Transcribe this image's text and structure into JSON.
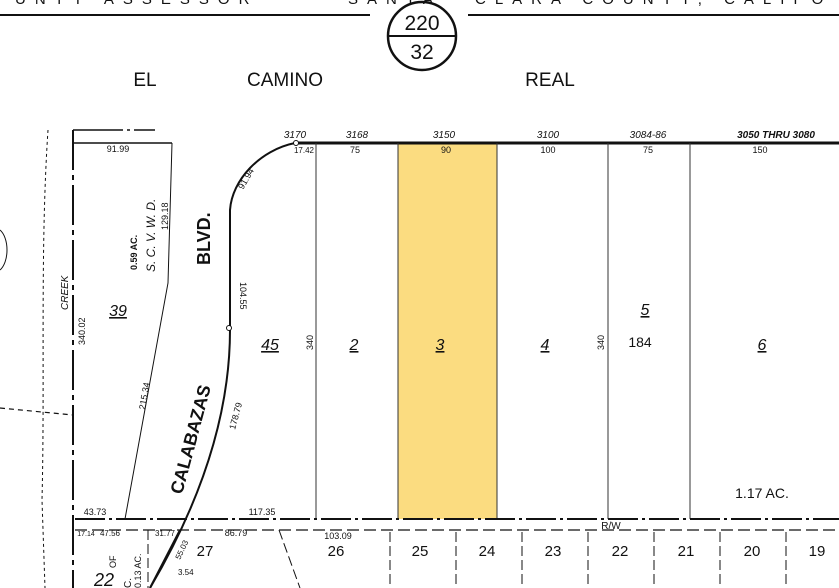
{
  "header": {
    "banner_left": "UNTY  ASSESSOR",
    "banner_mid": "SANTA",
    "banner_right": "CLARA  COUNTY,  CALIFO",
    "book": "220",
    "page": "32"
  },
  "streets": {
    "el": "EL",
    "camino": "CAMINO",
    "real": "REAL",
    "blvd": "BLVD.",
    "calabazas": "CALABAZAS",
    "creek": "CREEK",
    "right_of_way": "R/W"
  },
  "highlight_color": "#fbdc80",
  "addresses": [
    "3170",
    "3168",
    "3150",
    "3100",
    "3084-86",
    "3050 THRU 3080"
  ],
  "frontages": [
    "17.42",
    "75",
    "90",
    "100",
    "75",
    "150"
  ],
  "parcels": [
    {
      "number": "39",
      "area": "0.59 AC.",
      "owner": "S. C. V. W. D."
    },
    {
      "number": "45"
    },
    {
      "number": "2"
    },
    {
      "number": "3",
      "highlighted": true
    },
    {
      "number": "4"
    },
    {
      "number": "5",
      "sub": "184"
    },
    {
      "number": "6",
      "area": "1.17 AC."
    }
  ],
  "dimensions": {
    "d1": "91.99",
    "d2": "129.18",
    "d3": "340.02",
    "d4": "215.34",
    "d5": "91.94",
    "d6": "104.55",
    "d7": "178.79",
    "d8": "340",
    "d9": "340",
    "d10": "43.73",
    "d11": "117.35",
    "d12": "17.14",
    "d13": "47.56",
    "d14": "31.77",
    "d15": "86.79",
    "d16": "103.09",
    "d17": "55.03",
    "d18": "3.54"
  },
  "lower_lots": [
    "27",
    "26",
    "25",
    "24",
    "23",
    "22",
    "21",
    "20",
    "19"
  ],
  "lower_left": {
    "lot": "22",
    "of": "OF",
    "area": "0.13 AC.",
    "c": "C."
  }
}
